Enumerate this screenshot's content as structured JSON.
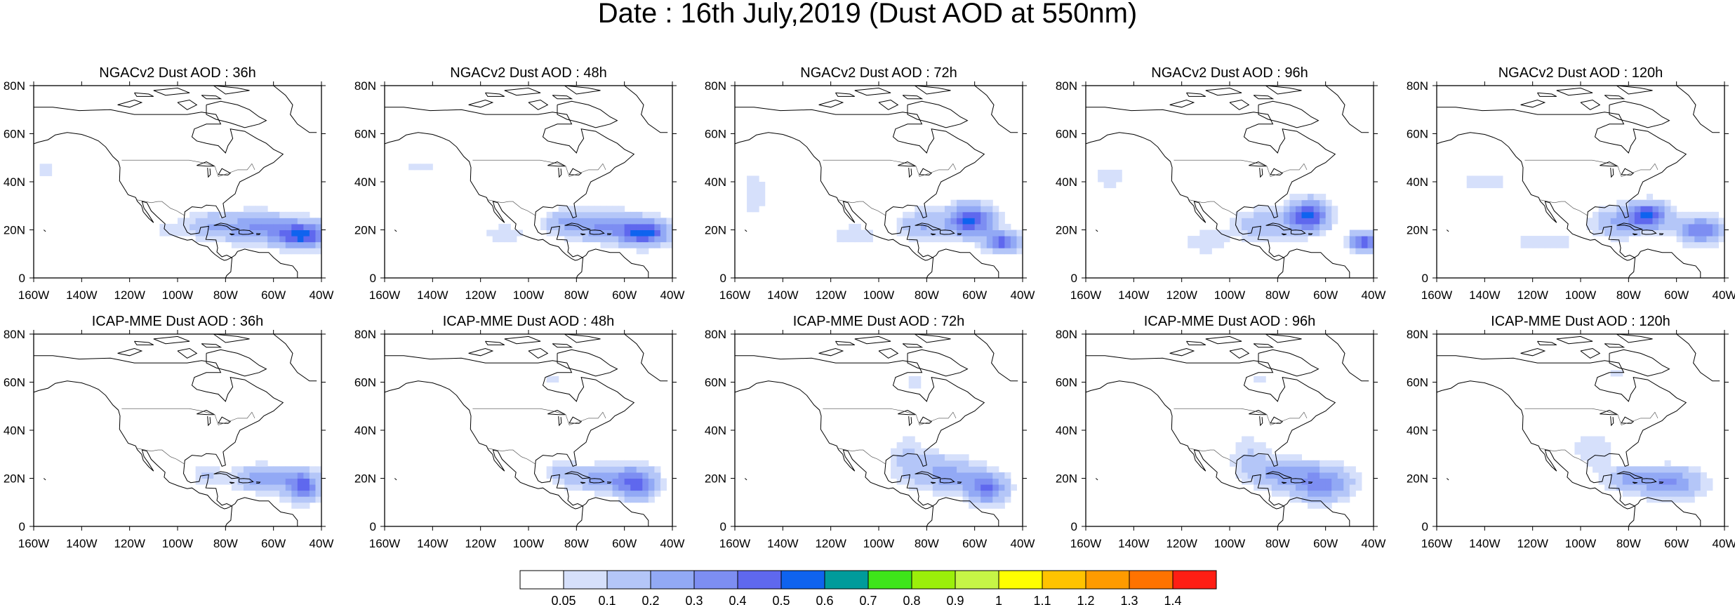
{
  "figure": {
    "title": "Date : 16th July,2019 (Dust AOD at 550nm)"
  },
  "axes": {
    "x_ticks": [
      "160W",
      "140W",
      "120W",
      "100W",
      "80W",
      "60W",
      "40W"
    ],
    "y_ticks": [
      "80N",
      "60N",
      "40N",
      "20N",
      "0"
    ],
    "lon_range": [
      -160,
      -40
    ],
    "lat_range": [
      0,
      80
    ]
  },
  "panels": [
    {
      "title": "NGACv2 Dust AOD : 36h",
      "model": "NGACv2",
      "lead": "36h"
    },
    {
      "title": "NGACv2 Dust AOD : 48h",
      "model": "NGACv2",
      "lead": "48h"
    },
    {
      "title": "NGACv2 Dust AOD : 72h",
      "model": "NGACv2",
      "lead": "72h"
    },
    {
      "title": "NGACv2 Dust AOD : 96h",
      "model": "NGACv2",
      "lead": "96h"
    },
    {
      "title": "NGACv2 Dust AOD : 120h",
      "model": "NGACv2",
      "lead": "120h"
    },
    {
      "title": "ICAP-MME Dust AOD : 36h",
      "model": "ICAP-MME",
      "lead": "36h"
    },
    {
      "title": "ICAP-MME Dust AOD : 48h",
      "model": "ICAP-MME",
      "lead": "48h"
    },
    {
      "title": "ICAP-MME Dust AOD : 72h",
      "model": "ICAP-MME",
      "lead": "72h"
    },
    {
      "title": "ICAP-MME Dust AOD : 96h",
      "model": "ICAP-MME",
      "lead": "96h"
    },
    {
      "title": "ICAP-MME Dust AOD : 120h",
      "model": "ICAP-MME",
      "lead": "120h"
    }
  ],
  "colorbar": {
    "labels": [
      "0.05",
      "0.1",
      "0.2",
      "0.3",
      "0.4",
      "0.5",
      "0.6",
      "0.7",
      "0.8",
      "0.9",
      "1",
      "1.1",
      "1.2",
      "1.3",
      "1.4"
    ],
    "colors": [
      "#ffffff",
      "#d6e0fb",
      "#b4c6f8",
      "#92a9f5",
      "#7d8ef2",
      "#5f68ee",
      "#0f63ef",
      "#009b9b",
      "#3ee51a",
      "#9bef0a",
      "#c6f546",
      "#ffff00",
      "#ffc300",
      "#ff9b00",
      "#ff7300",
      "#ff1e14"
    ]
  }
}
